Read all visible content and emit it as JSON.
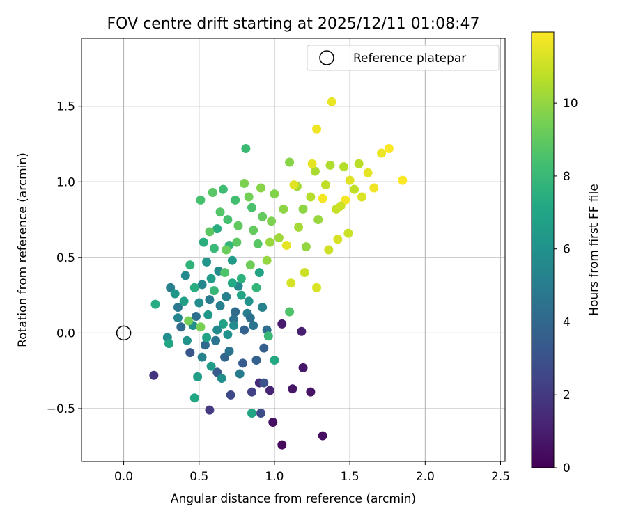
{
  "chart_data": {
    "type": "scatter",
    "title": "FOV centre drift starting at 2025/12/11 01:08:47",
    "xlabel": "Angular distance from reference (arcmin)",
    "ylabel": "Rotation from reference (arcmin)",
    "colorbar_label": "Hours from first FF file",
    "xlim": [
      -0.28,
      2.53
    ],
    "ylim": [
      -0.85,
      1.95
    ],
    "clim": [
      0,
      11.95
    ],
    "colormap": "viridis",
    "grid": true,
    "legend_position": "top-right",
    "xticks": [
      0.0,
      0.5,
      1.0,
      1.5,
      2.0,
      2.5
    ],
    "xtick_labels": [
      "0.0",
      "0.5",
      "1.0",
      "1.5",
      "2.0",
      "2.5"
    ],
    "yticks": [
      -0.5,
      0.0,
      0.5,
      1.0,
      1.5
    ],
    "ytick_labels": [
      "−0.5",
      "0.0",
      "0.5",
      "1.0",
      "1.5"
    ],
    "cticks": [
      0,
      2,
      4,
      6,
      8,
      10
    ],
    "ctick_labels": [
      "0",
      "2",
      "4",
      "6",
      "8",
      "10"
    ],
    "reference": {
      "label": "Reference platepar",
      "x": 0.0,
      "y": 0.0
    },
    "points": [
      [
        1.05,
        -0.74,
        0.3
      ],
      [
        1.32,
        -0.68,
        0.4
      ],
      [
        0.99,
        -0.59,
        0.5
      ],
      [
        1.24,
        -0.39,
        0.6
      ],
      [
        1.12,
        -0.37,
        0.7
      ],
      [
        1.19,
        -0.23,
        0.8
      ],
      [
        1.05,
        0.06,
        0.9
      ],
      [
        1.18,
        0.01,
        1.0
      ],
      [
        0.97,
        -0.38,
        1.2
      ],
      [
        0.9,
        -0.33,
        1.5
      ],
      [
        0.2,
        -0.28,
        1.8
      ],
      [
        0.57,
        -0.51,
        2.0
      ],
      [
        0.85,
        -0.39,
        2.3
      ],
      [
        0.71,
        -0.41,
        2.6
      ],
      [
        0.91,
        -0.53,
        2.8
      ],
      [
        0.93,
        -0.33,
        3.0
      ],
      [
        0.44,
        -0.13,
        3.2
      ],
      [
        0.62,
        -0.26,
        3.4
      ],
      [
        0.79,
        -0.2,
        3.5
      ],
      [
        0.88,
        -0.18,
        3.7
      ],
      [
        0.67,
        -0.16,
        3.9
      ],
      [
        0.54,
        -0.08,
        4.0
      ],
      [
        0.38,
        0.04,
        4.2
      ],
      [
        0.95,
        0.02,
        4.3
      ],
      [
        0.48,
        0.11,
        4.4
      ],
      [
        0.73,
        0.09,
        4.5
      ],
      [
        0.86,
        0.05,
        4.6
      ],
      [
        0.61,
        -0.05,
        4.7
      ],
      [
        0.36,
        0.17,
        4.8
      ],
      [
        0.57,
        0.22,
        4.9
      ],
      [
        0.82,
        0.13,
        5.0
      ],
      [
        0.31,
        0.3,
        5.1
      ],
      [
        0.68,
        0.24,
        5.2
      ],
      [
        0.92,
        0.17,
        5.3
      ],
      [
        0.52,
        0.32,
        5.4
      ],
      [
        0.76,
        0.31,
        5.5
      ],
      [
        0.41,
        0.38,
        5.6
      ],
      [
        0.63,
        0.41,
        5.7
      ],
      [
        0.29,
        -0.03,
        5.8
      ],
      [
        0.46,
        0.05,
        5.9
      ],
      [
        0.69,
        -0.01,
        6.0
      ],
      [
        0.83,
        0.21,
        6.1
      ],
      [
        0.55,
        0.47,
        6.2
      ],
      [
        0.34,
        0.26,
        6.3
      ],
      [
        0.72,
        0.48,
        6.4
      ],
      [
        0.58,
        -0.22,
        6.5
      ],
      [
        0.49,
        -0.29,
        6.6
      ],
      [
        0.4,
        0.21,
        6.7
      ],
      [
        0.66,
        0.06,
        6.8
      ],
      [
        0.9,
        0.4,
        6.9
      ],
      [
        0.3,
        -0.07,
        7.0
      ],
      [
        0.85,
        -0.53,
        7.0
      ],
      [
        0.47,
        -0.43,
        7.1
      ],
      [
        1.0,
        -0.18,
        7.2
      ],
      [
        0.21,
        0.19,
        7.3
      ],
      [
        0.62,
        0.69,
        7.4
      ],
      [
        0.53,
        0.6,
        7.5
      ],
      [
        0.78,
        0.36,
        7.6
      ],
      [
        0.44,
        0.45,
        7.7
      ],
      [
        0.7,
        0.58,
        7.8
      ],
      [
        0.6,
        0.28,
        7.9
      ],
      [
        0.96,
        -0.02,
        8.0
      ],
      [
        0.81,
        1.22,
        8.1
      ],
      [
        0.66,
        0.95,
        8.2
      ],
      [
        0.74,
        0.88,
        8.3
      ],
      [
        0.51,
        0.88,
        8.4
      ],
      [
        0.85,
        0.83,
        8.5
      ],
      [
        1.1,
        0.14,
        8.6
      ],
      [
        0.64,
        0.8,
        8.7
      ],
      [
        0.89,
        0.59,
        8.8
      ],
      [
        0.57,
        0.67,
        8.9
      ],
      [
        0.76,
        0.71,
        9.0
      ],
      [
        0.92,
        0.77,
        9.1
      ],
      [
        0.68,
        0.55,
        9.2
      ],
      [
        0.84,
        0.45,
        9.3
      ],
      [
        0.43,
        0.08,
        9.4
      ],
      [
        0.51,
        0.04,
        9.5
      ],
      [
        0.8,
        0.99,
        9.6
      ],
      [
        1.0,
        0.92,
        9.7
      ],
      [
        1.1,
        1.13,
        9.8
      ],
      [
        1.19,
        0.82,
        9.9
      ],
      [
        0.95,
        0.48,
        10.0
      ],
      [
        1.21,
        0.57,
        10.0
      ],
      [
        1.29,
        0.75,
        10.1
      ],
      [
        1.03,
        0.63,
        10.2
      ],
      [
        1.15,
        0.97,
        10.3
      ],
      [
        1.27,
        1.07,
        10.4
      ],
      [
        1.37,
        1.11,
        10.5
      ],
      [
        1.46,
        1.1,
        10.6
      ],
      [
        1.56,
        1.12,
        10.7
      ],
      [
        1.53,
        0.95,
        10.8
      ],
      [
        1.41,
        0.82,
        10.9
      ],
      [
        1.49,
        0.66,
        11.0
      ],
      [
        1.36,
        0.55,
        11.1
      ],
      [
        1.11,
        0.33,
        11.2
      ],
      [
        1.28,
        0.3,
        11.3
      ],
      [
        1.13,
        0.98,
        11.4
      ],
      [
        1.25,
        1.12,
        11.5
      ],
      [
        1.38,
        1.53,
        11.6
      ],
      [
        1.71,
        1.19,
        11.6
      ],
      [
        1.66,
        0.96,
        11.7
      ],
      [
        1.47,
        0.88,
        11.8
      ],
      [
        1.32,
        0.89,
        11.8
      ],
      [
        1.85,
        1.01,
        11.9
      ],
      [
        1.76,
        1.22,
        11.9
      ],
      [
        1.28,
        1.35,
        11.7
      ],
      [
        1.08,
        0.58,
        11.5
      ],
      [
        1.42,
        0.62,
        11.2
      ],
      [
        1.2,
        0.4,
        11.0
      ],
      [
        0.36,
        0.1,
        5.4
      ],
      [
        0.5,
        0.2,
        5.8
      ],
      [
        0.58,
        0.36,
        6.6
      ],
      [
        0.64,
        0.18,
        5.1
      ],
      [
        0.74,
        0.14,
        4.1
      ],
      [
        0.8,
        0.02,
        3.8
      ],
      [
        0.7,
        -0.12,
        4.6
      ],
      [
        0.55,
        -0.03,
        6.9
      ],
      [
        0.47,
        0.3,
        7.4
      ],
      [
        0.6,
        0.56,
        8.0
      ],
      [
        0.67,
        0.4,
        8.6
      ],
      [
        0.75,
        0.6,
        8.9
      ],
      [
        0.86,
        0.68,
        9.1
      ],
      [
        0.98,
        0.74,
        9.6
      ],
      [
        1.06,
        0.82,
        9.9
      ],
      [
        1.16,
        0.7,
        10.3
      ],
      [
        1.24,
        0.9,
        10.6
      ],
      [
        1.34,
        0.98,
        10.8
      ],
      [
        1.44,
        0.84,
        11.0
      ],
      [
        1.58,
        0.9,
        11.3
      ],
      [
        1.62,
        1.06,
        11.5
      ],
      [
        1.5,
        1.01,
        11.4
      ],
      [
        0.78,
        0.25,
        7.0
      ],
      [
        0.88,
        0.3,
        7.8
      ],
      [
        0.56,
        0.12,
        6.3
      ],
      [
        0.42,
        -0.05,
        6.1
      ],
      [
        0.65,
        -0.3,
        5.9
      ],
      [
        0.77,
        -0.27,
        4.9
      ],
      [
        0.93,
        -0.1,
        3.6
      ],
      [
        0.84,
        0.1,
        4.4
      ],
      [
        0.62,
        0.02,
        5.6
      ],
      [
        0.52,
        -0.16,
        5.3
      ],
      [
        0.72,
        0.33,
        7.2
      ],
      [
        0.69,
        0.75,
        8.4
      ],
      [
        0.59,
        0.93,
        8.8
      ],
      [
        0.83,
        0.9,
        9.4
      ],
      [
        0.91,
        0.96,
        9.8
      ],
      [
        0.97,
        0.6,
        10.1
      ],
      [
        0.73,
        0.05,
        5.7
      ]
    ]
  }
}
